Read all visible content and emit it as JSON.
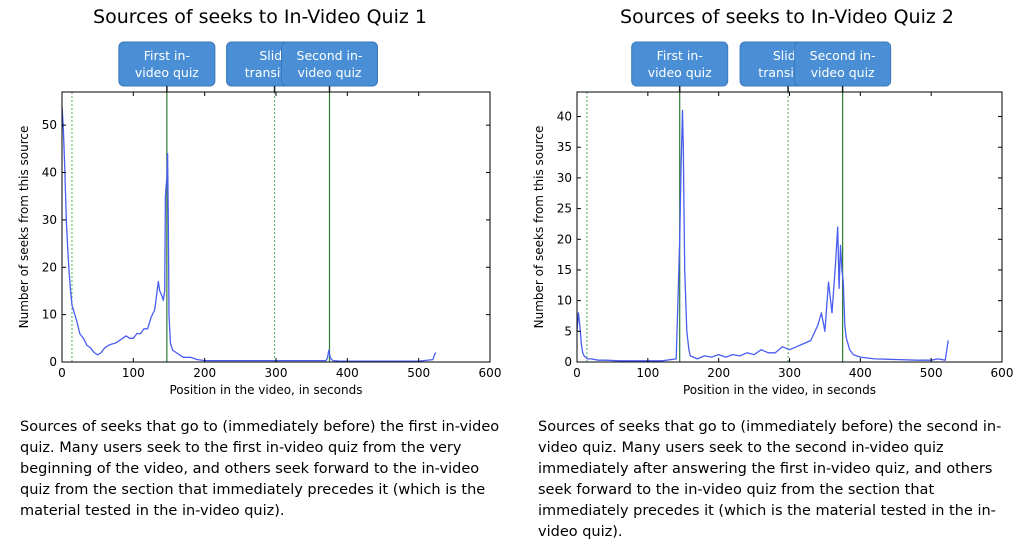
{
  "chart_data": [
    {
      "type": "line",
      "title": "Sources of seeks to In-Video Quiz 1",
      "xlabel": "Position in the video, in seconds",
      "ylabel": "Number of seeks from this source",
      "xlim": [
        0,
        600
      ],
      "ylim": [
        0,
        57
      ],
      "xticks": [
        "0",
        "100",
        "200",
        "300",
        "400",
        "500",
        "600"
      ],
      "yticks": [
        "0",
        "10",
        "20",
        "30",
        "40",
        "50"
      ],
      "xtick_values": [
        0,
        100,
        200,
        300,
        400,
        500,
        600
      ],
      "ytick_values": [
        0,
        10,
        20,
        30,
        40,
        50
      ],
      "series_color": "#4a5ef0",
      "series": [
        {
          "x": [
            0,
            2,
            4,
            6,
            8,
            10,
            12,
            14,
            16,
            20,
            25,
            30,
            35,
            40,
            45,
            50,
            55,
            60,
            65,
            70,
            75,
            80,
            85,
            90,
            95,
            100,
            105,
            110,
            115,
            120,
            125,
            130,
            135,
            137,
            140,
            142,
            144,
            145,
            146,
            147,
            148,
            149,
            150,
            152,
            155,
            160,
            165,
            170,
            175,
            180,
            190,
            200,
            250,
            300,
            350,
            370,
            372,
            374,
            376,
            378,
            380,
            390,
            400,
            450,
            500,
            520,
            522,
            524
          ],
          "y": [
            54,
            49,
            40,
            30,
            24,
            19,
            15,
            12,
            11,
            9,
            6,
            5,
            3.5,
            3,
            2,
            1.5,
            2,
            3,
            3.5,
            3.8,
            4,
            4.5,
            5,
            5.5,
            5,
            5,
            6,
            6,
            7,
            7,
            9.5,
            11,
            17,
            15,
            14,
            13,
            15,
            35,
            37,
            39,
            44,
            30,
            10,
            4,
            2.5,
            2,
            1.5,
            1,
            1,
            1,
            0.5,
            0.3,
            0.3,
            0.3,
            0.3,
            0.3,
            0.8,
            2.5,
            1,
            0.5,
            0.3,
            0.2,
            0.2,
            0.2,
            0.2,
            0.5,
            1.5,
            2
          ]
        }
      ],
      "vlines": [
        {
          "x": 14,
          "style": "dotted",
          "color": "#4caf50"
        },
        {
          "x": 147,
          "style": "solid",
          "color": "#2e7d32"
        },
        {
          "x": 298,
          "style": "dotted",
          "color": "#4caf50"
        },
        {
          "x": 375,
          "style": "solid",
          "color": "#2e7d32"
        }
      ],
      "callouts": [
        {
          "lines": [
            "First in-",
            "video quiz"
          ],
          "x": 147
        },
        {
          "lines": [
            "Slide",
            "transition"
          ],
          "x": 298
        },
        {
          "lines": [
            "Second in-",
            "video quiz"
          ],
          "x": 375
        }
      ]
    },
    {
      "type": "line",
      "title": "Sources of seeks to In-Video Quiz 2",
      "xlabel": "Position in the video, in seconds",
      "ylabel": "Number of seeks from this source",
      "xlim": [
        0,
        600
      ],
      "ylim": [
        0,
        44
      ],
      "xticks": [
        "0",
        "100",
        "200",
        "300",
        "400",
        "500",
        "600"
      ],
      "yticks": [
        "0",
        "5",
        "10",
        "15",
        "20",
        "25",
        "30",
        "35",
        "40"
      ],
      "xtick_values": [
        0,
        100,
        200,
        300,
        400,
        500,
        600
      ],
      "ytick_values": [
        0,
        5,
        10,
        15,
        20,
        25,
        30,
        35,
        40
      ],
      "series_color": "#4a5ef0",
      "series": [
        {
          "x": [
            0,
            2,
            4,
            6,
            8,
            10,
            15,
            20,
            30,
            40,
            60,
            80,
            100,
            120,
            140,
            143,
            145,
            147,
            149,
            150,
            152,
            155,
            158,
            160,
            170,
            180,
            190,
            200,
            210,
            220,
            230,
            240,
            250,
            260,
            270,
            280,
            290,
            300,
            310,
            320,
            330,
            340,
            345,
            350,
            355,
            360,
            365,
            368,
            370,
            372,
            374,
            376,
            378,
            380,
            385,
            390,
            400,
            420,
            450,
            480,
            500,
            510,
            520,
            522,
            524
          ],
          "y": [
            5,
            8,
            6,
            3,
            1.5,
            1,
            0.5,
            0.5,
            0.3,
            0.3,
            0.2,
            0.2,
            0.2,
            0.2,
            0.5,
            12,
            20,
            32,
            41,
            35,
            15,
            5,
            2,
            1,
            0.5,
            1,
            0.8,
            1.2,
            0.8,
            1.2,
            1,
            1.5,
            1.2,
            2,
            1.5,
            1.5,
            2.5,
            2,
            2.5,
            3,
            3.5,
            6,
            8,
            5,
            13,
            8,
            16,
            22,
            12,
            19,
            15,
            13,
            6,
            4,
            2,
            1.2,
            0.8,
            0.5,
            0.4,
            0.3,
            0.3,
            0.5,
            0.3,
            2,
            3.5
          ]
        }
      ],
      "vlines": [
        {
          "x": 14,
          "style": "dotted",
          "color": "#4caf50"
        },
        {
          "x": 145,
          "style": "solid",
          "color": "#2e7d32"
        },
        {
          "x": 298,
          "style": "dotted",
          "color": "#4caf50"
        },
        {
          "x": 375,
          "style": "solid",
          "color": "#2e7d32"
        }
      ],
      "callouts": [
        {
          "lines": [
            "First in-",
            "video quiz"
          ],
          "x": 145
        },
        {
          "lines": [
            "Slide",
            "transition"
          ],
          "x": 298
        },
        {
          "lines": [
            "Second in-",
            "video quiz"
          ],
          "x": 375
        }
      ]
    }
  ],
  "captions": [
    "Sources of seeks that go to (immediately before) the first in-video quiz. Many users seek to the first in-video quiz from the very beginning of the video, and others seek forward to the in-video quiz from the section that immediately precedes it (which is the material tested in the in-video quiz).",
    "Sources of seeks that go to (immediately before) the second in-video quiz. Many users seek to the second in-video quiz immediately after answering the first in-video quiz, and others seek forward to the in-video quiz from the section that immediately precedes it (which is the material tested in the in-video quiz)."
  ],
  "callout_color": "#4a8fd6"
}
